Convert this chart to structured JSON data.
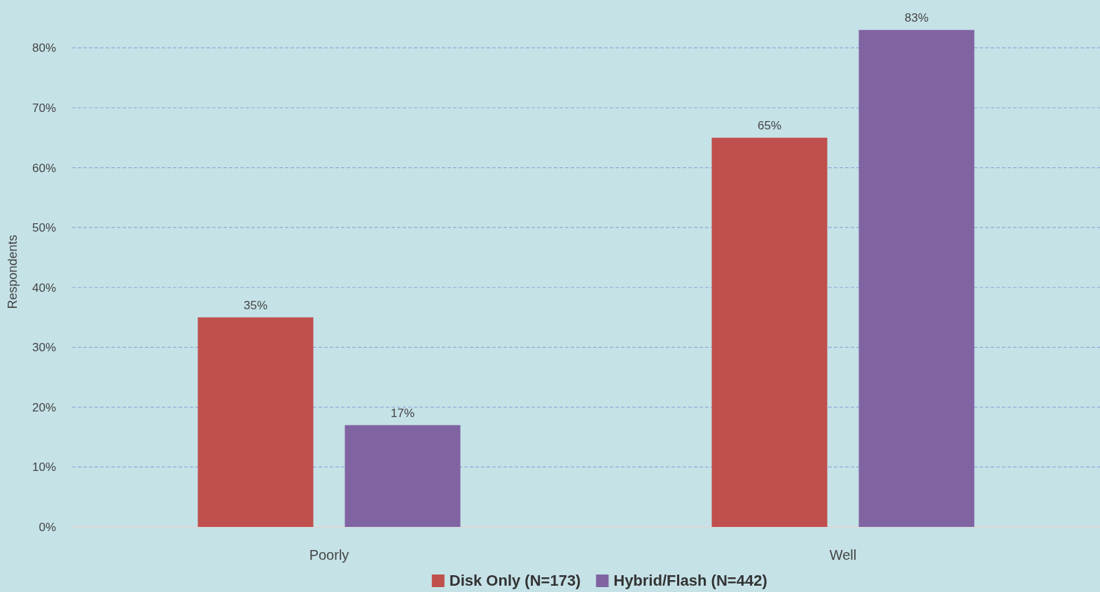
{
  "chart_data": {
    "type": "bar",
    "ylabel": "Respondents",
    "categories": [
      "Poorly",
      "Well"
    ],
    "series": [
      {
        "name": "Disk Only (N=173)",
        "color": "#c0504d",
        "values": [
          35,
          65
        ]
      },
      {
        "name": "Hybrid/Flash (N=442)",
        "color": "#8064a2",
        "values": [
          17,
          83
        ]
      }
    ],
    "ylim": [
      0,
      88
    ],
    "yticks": [
      {
        "value": 0,
        "label": "0%"
      },
      {
        "value": 10,
        "label": "10%"
      },
      {
        "value": 20,
        "label": "20%"
      },
      {
        "value": 30,
        "label": "30%"
      },
      {
        "value": 40,
        "label": "40%"
      },
      {
        "value": 50,
        "label": "50%"
      },
      {
        "value": 60,
        "label": "60%"
      },
      {
        "value": 70,
        "label": "70%"
      },
      {
        "value": 80,
        "label": "80%"
      }
    ],
    "value_labels": [
      [
        "35%",
        "65%"
      ],
      [
        "17%",
        "83%"
      ]
    ],
    "grid": "y",
    "legend": "bottom"
  }
}
